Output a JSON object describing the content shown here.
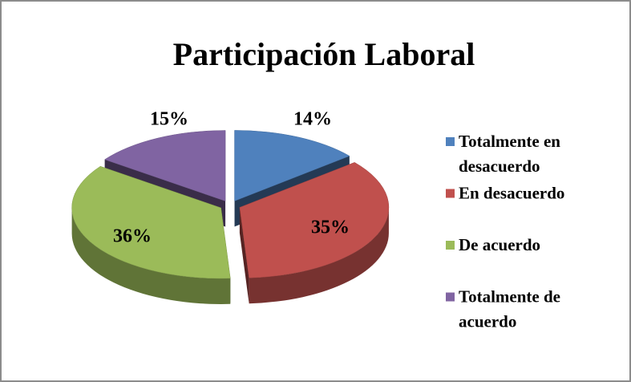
{
  "chart_data": {
    "type": "pie",
    "title": "Participación Laboral",
    "categories": [
      "Totalmente en desacuerdo",
      "En desacuerdo",
      "De acuerdo",
      "Totalmente de acuerdo"
    ],
    "values": [
      14,
      35,
      36,
      15
    ],
    "value_labels": [
      "14%",
      "35%",
      "36%",
      "15%"
    ],
    "colors": [
      "#4f81bd",
      "#c0504d",
      "#9bbb59",
      "#8064a2"
    ],
    "legend": "right"
  }
}
